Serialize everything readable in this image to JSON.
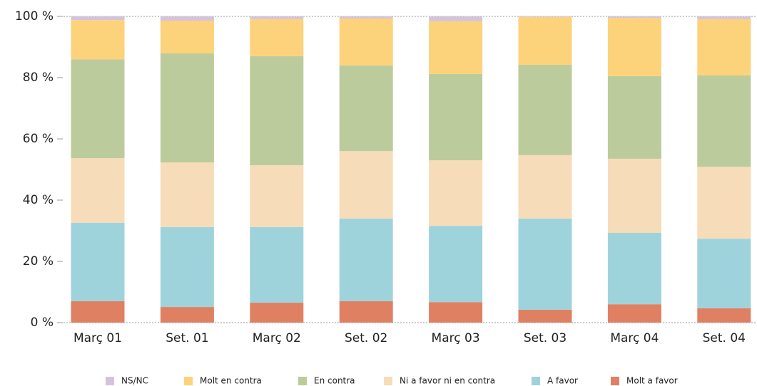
{
  "chart_data": {
    "type": "stacked_bar",
    "categories": [
      "Març 01",
      "Set. 01",
      "Març 02",
      "Set. 02",
      "Març 03",
      "Set. 03",
      "Març 04",
      "Set. 04"
    ],
    "series": [
      {
        "name": "Molt a favor",
        "color": "#e08063",
        "values": [
          7.0,
          5.1,
          6.5,
          7.0,
          6.7,
          4.2,
          6.0,
          4.7
        ]
      },
      {
        "name": "A favor",
        "color": "#9fd3dc",
        "values": [
          25.6,
          26.1,
          24.7,
          27.0,
          24.9,
          29.8,
          23.3,
          22.7
        ]
      },
      {
        "name": "Ni a favor ni en contra",
        "color": "#f6dcb8",
        "values": [
          21.1,
          21.1,
          20.2,
          22.0,
          21.4,
          20.7,
          24.2,
          23.5
        ]
      },
      {
        "name": "En contra",
        "color": "#bccb9c",
        "values": [
          32.3,
          35.6,
          35.6,
          28.0,
          28.2,
          29.5,
          27.0,
          29.8
        ]
      },
      {
        "name": "Molt en contra",
        "color": "#fcd27a",
        "values": [
          12.8,
          10.7,
          12.1,
          15.3,
          17.2,
          15.6,
          19.0,
          18.4
        ]
      },
      {
        "name": "NS/NC",
        "color": "#d5c3dc",
        "values": [
          1.2,
          1.4,
          0.9,
          0.7,
          1.6,
          0.2,
          0.5,
          0.9
        ]
      }
    ],
    "ylim": [
      0,
      100
    ],
    "yticks": [
      {
        "value": 0,
        "label": "0 %"
      },
      {
        "value": 20,
        "label": "20 %"
      },
      {
        "value": 40,
        "label": "40 %"
      },
      {
        "value": 60,
        "label": "60 %"
      },
      {
        "value": 80,
        "label": "80 %"
      },
      {
        "value": 100,
        "label": "100 %"
      }
    ],
    "legend": "bottom"
  }
}
